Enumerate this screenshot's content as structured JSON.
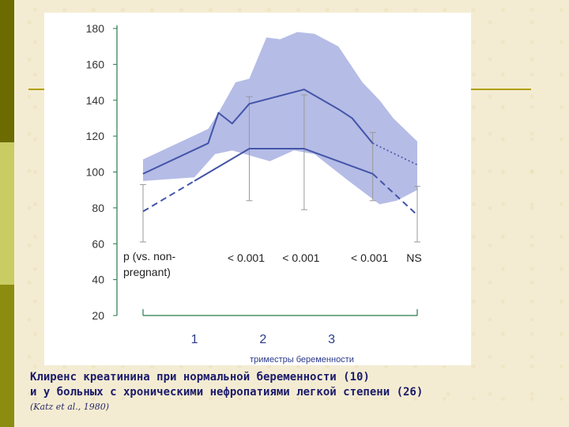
{
  "theme": {
    "accent_dark": "#6b6b00",
    "accent_light": "#c9cc63",
    "band_color": "#b5bce6",
    "line_color": "#4455a8"
  },
  "chart_data": {
    "type": "line",
    "ylim": [
      20,
      180
    ],
    "yticks": [
      "20",
      "40",
      "60",
      "80",
      "100",
      "120",
      "140",
      "160",
      "180"
    ],
    "xlabel": "триместры беременности",
    "xtick_labels": [
      {
        "x": 1.75,
        "label": "1"
      },
      {
        "x": 2.75,
        "label": "2"
      },
      {
        "x": 3.75,
        "label": "3"
      }
    ],
    "band": {
      "upper": [
        [
          1,
          107
        ],
        [
          1.95,
          124
        ],
        [
          2.1,
          133
        ],
        [
          2.35,
          150
        ],
        [
          2.55,
          152
        ],
        [
          2.8,
          175
        ],
        [
          3.0,
          174
        ],
        [
          3.25,
          178
        ],
        [
          3.5,
          177
        ],
        [
          3.85,
          170
        ],
        [
          4.2,
          150
        ],
        [
          4.45,
          140
        ],
        [
          4.65,
          130
        ],
        [
          5,
          117
        ]
      ],
      "lower": [
        [
          1,
          95
        ],
        [
          1.75,
          97
        ],
        [
          2.05,
          110
        ],
        [
          2.3,
          112
        ],
        [
          2.85,
          106
        ],
        [
          3.2,
          112
        ],
        [
          3.5,
          110
        ],
        [
          4.0,
          95
        ],
        [
          4.45,
          82
        ],
        [
          4.7,
          84
        ],
        [
          5,
          90
        ]
      ]
    },
    "series": [
      {
        "style": "solid",
        "points": [
          [
            1,
            99
          ],
          [
            1.95,
            116
          ],
          [
            2.1,
            133
          ],
          [
            2.3,
            127
          ],
          [
            2.55,
            138
          ],
          [
            3.35,
            146
          ],
          [
            3.85,
            135
          ],
          [
            4.05,
            130
          ],
          [
            4.35,
            116
          ]
        ]
      },
      {
        "style": "dotted",
        "points": [
          [
            1,
            99
          ],
          [
            1.95,
            116
          ]
        ]
      },
      {
        "style": "dotted",
        "points": [
          [
            4.35,
            116
          ],
          [
            5,
            104
          ]
        ]
      },
      {
        "style": "solid",
        "points": [
          [
            1.75,
            95
          ],
          [
            2.55,
            113
          ],
          [
            3.35,
            113
          ],
          [
            4.35,
            99
          ]
        ]
      },
      {
        "style": "dashed",
        "points": [
          [
            1,
            78
          ],
          [
            1.75,
            95
          ]
        ]
      },
      {
        "style": "dashed",
        "points": [
          [
            4.35,
            99
          ],
          [
            5,
            76
          ]
        ]
      }
    ],
    "error_bars": [
      {
        "x": 1,
        "low": 61,
        "high": 93
      },
      {
        "x": 2.55,
        "low": 84,
        "high": 142
      },
      {
        "x": 3.35,
        "low": 79,
        "high": 143
      },
      {
        "x": 4.35,
        "low": 84,
        "high": 122
      },
      {
        "x": 5,
        "low": 61,
        "high": 92
      }
    ],
    "annotation": {
      "line1": "p (vs. non-",
      "line2": "pregnant)"
    },
    "pvalues": [
      {
        "x": 2.55,
        "label": "< 0.001"
      },
      {
        "x": 3.35,
        "label": "< 0.001"
      },
      {
        "x": 4.35,
        "label": "< 0.001"
      },
      {
        "x": 5,
        "label": "NS"
      }
    ]
  },
  "caption": {
    "line1": "Клиренс креатинина при нормальной беременности (10)",
    "line2": "и у больных с хроническими нефропатиями легкой степени (26)",
    "source": "(Katz et al., 1980)"
  }
}
